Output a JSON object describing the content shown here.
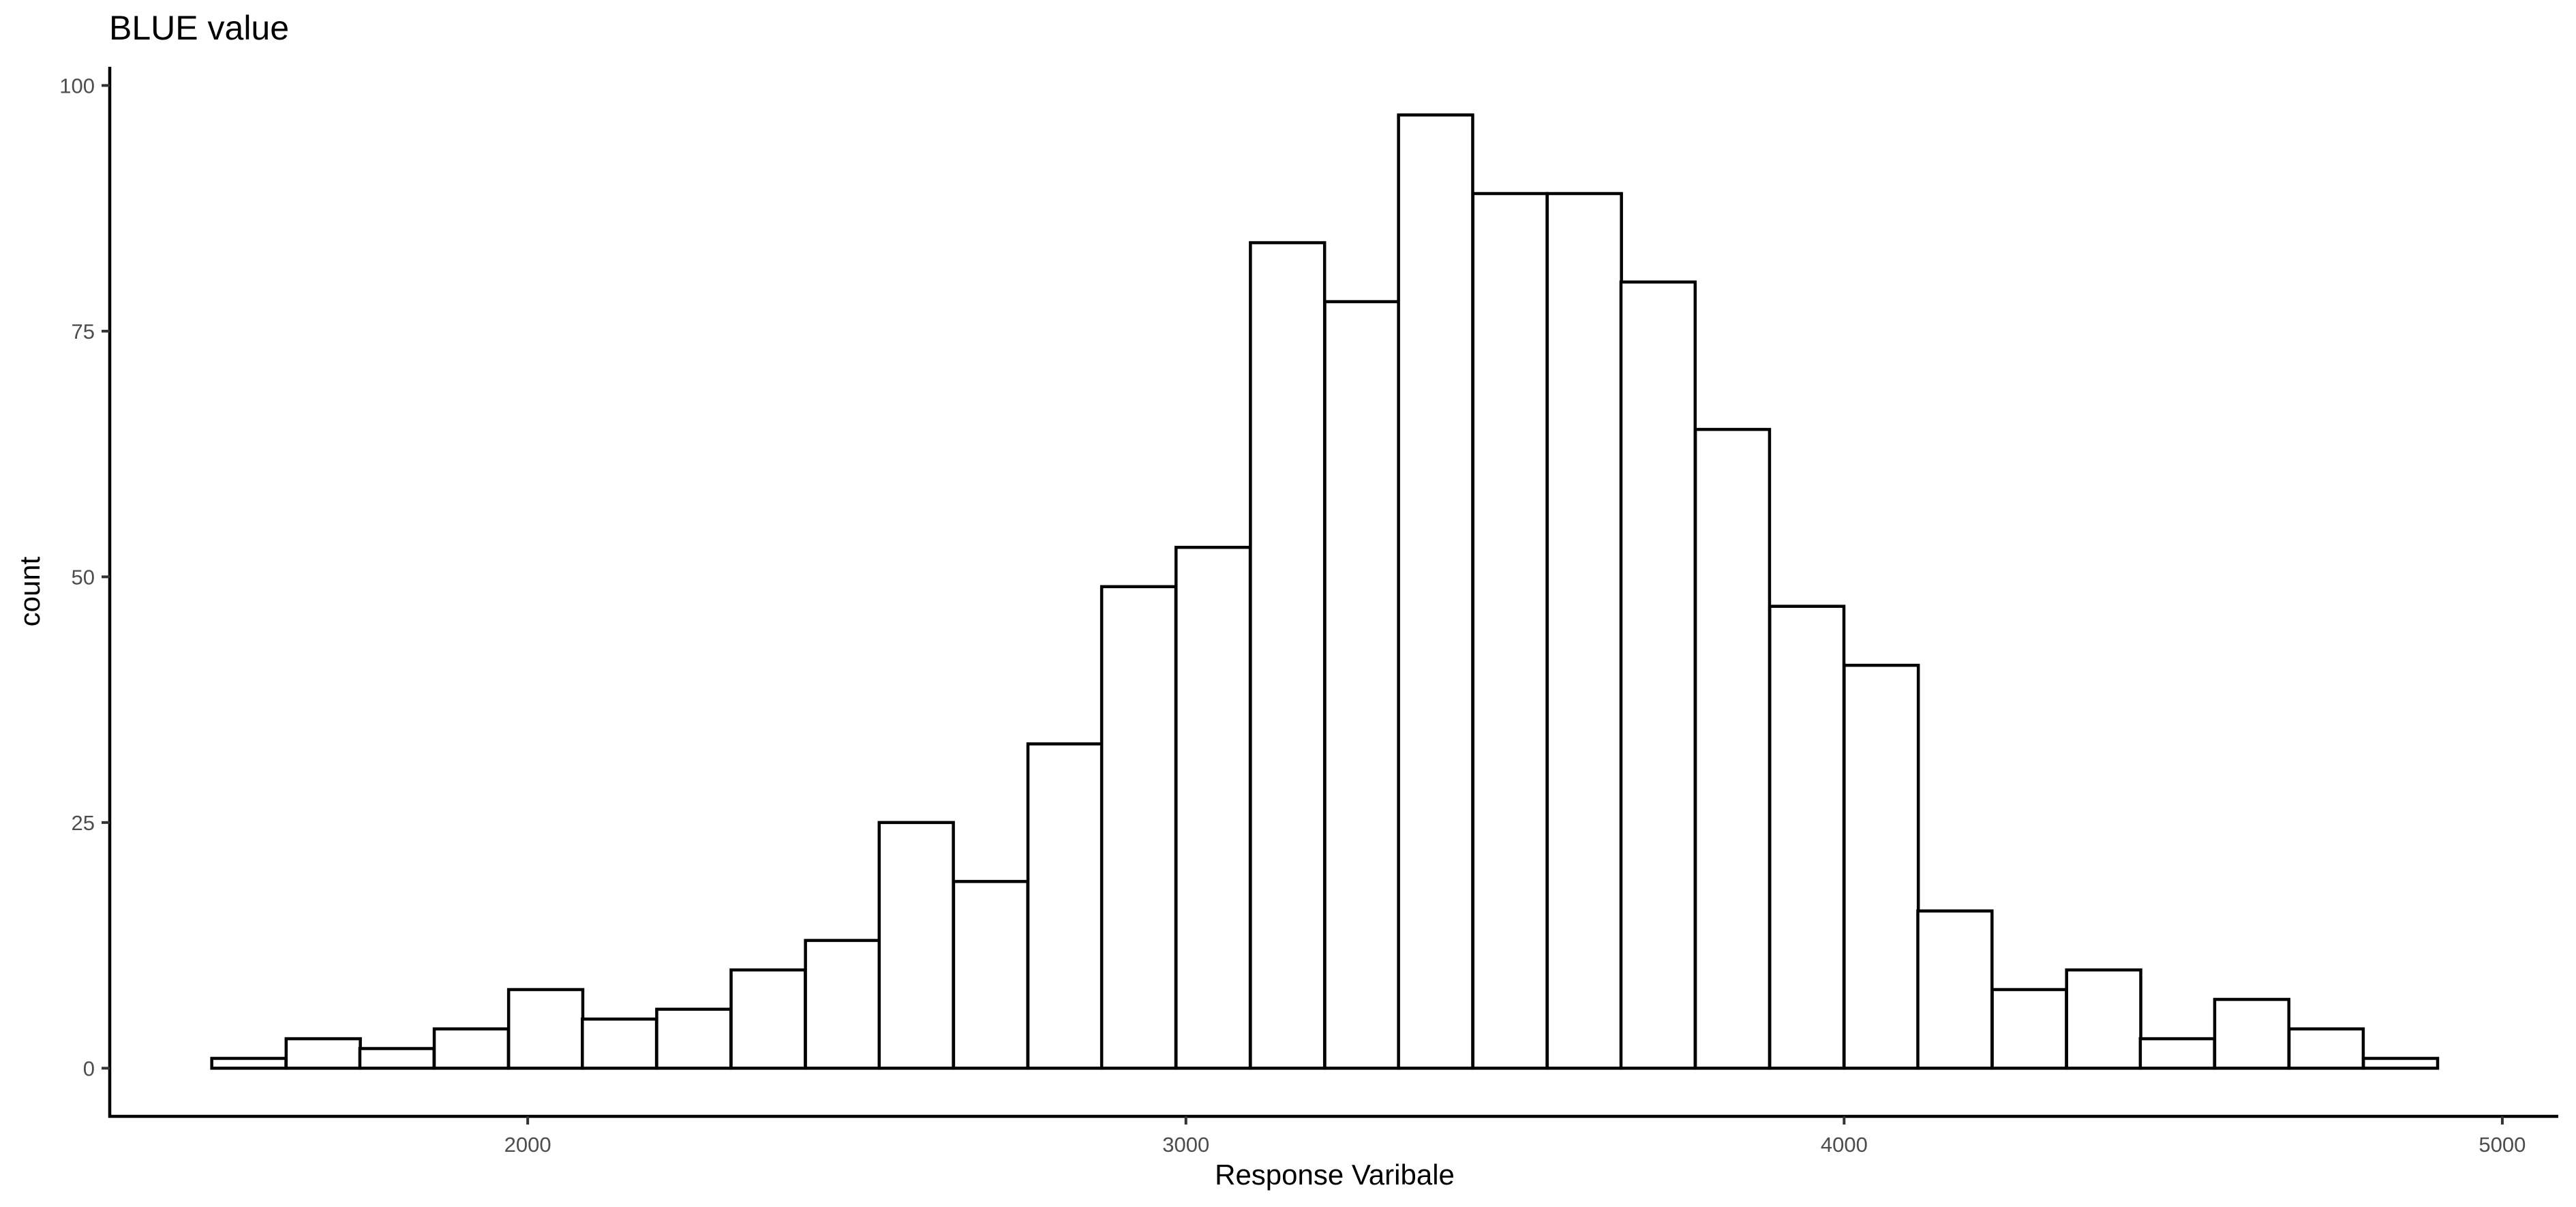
{
  "chart_data": {
    "type": "bar",
    "title": "BLUE value",
    "xlabel": "Response Varibale",
    "ylabel": "count",
    "bin_width": 112.7,
    "bins": [
      {
        "x_start": 1520,
        "count": 1
      },
      {
        "x_start": 1633,
        "count": 3
      },
      {
        "x_start": 1745,
        "count": 2
      },
      {
        "x_start": 1858,
        "count": 4
      },
      {
        "x_start": 1971,
        "count": 8
      },
      {
        "x_start": 2083,
        "count": 5
      },
      {
        "x_start": 2196,
        "count": 6
      },
      {
        "x_start": 2309,
        "count": 10
      },
      {
        "x_start": 2422,
        "count": 13
      },
      {
        "x_start": 2534,
        "count": 25
      },
      {
        "x_start": 2647,
        "count": 19
      },
      {
        "x_start": 2760,
        "count": 33
      },
      {
        "x_start": 2872,
        "count": 49
      },
      {
        "x_start": 2985,
        "count": 53
      },
      {
        "x_start": 3098,
        "count": 84
      },
      {
        "x_start": 3211,
        "count": 78
      },
      {
        "x_start": 3323,
        "count": 97
      },
      {
        "x_start": 3436,
        "count": 89
      },
      {
        "x_start": 3549,
        "count": 89
      },
      {
        "x_start": 3661,
        "count": 80
      },
      {
        "x_start": 3774,
        "count": 65
      },
      {
        "x_start": 3887,
        "count": 47
      },
      {
        "x_start": 4000,
        "count": 41
      },
      {
        "x_start": 4112,
        "count": 16
      },
      {
        "x_start": 4225,
        "count": 8
      },
      {
        "x_start": 4338,
        "count": 10
      },
      {
        "x_start": 4450,
        "count": 3
      },
      {
        "x_start": 4563,
        "count": 7
      },
      {
        "x_start": 4676,
        "count": 4
      },
      {
        "x_start": 4789,
        "count": 1
      }
    ],
    "xlim": [
      1365,
      5085
    ],
    "ylim": [
      -4.9,
      101.9
    ],
    "x_ticks": [
      2000,
      3000,
      4000,
      5000
    ],
    "y_ticks": [
      0,
      25,
      50,
      75,
      100
    ],
    "x_tick_labels": [
      "2000",
      "3000",
      "4000",
      "5000"
    ],
    "y_tick_labels": [
      "0",
      "25",
      "50",
      "75",
      "100"
    ],
    "grid": false,
    "legend": "none",
    "bar_fill": "#ffffff",
    "bar_outline": "#000000"
  }
}
